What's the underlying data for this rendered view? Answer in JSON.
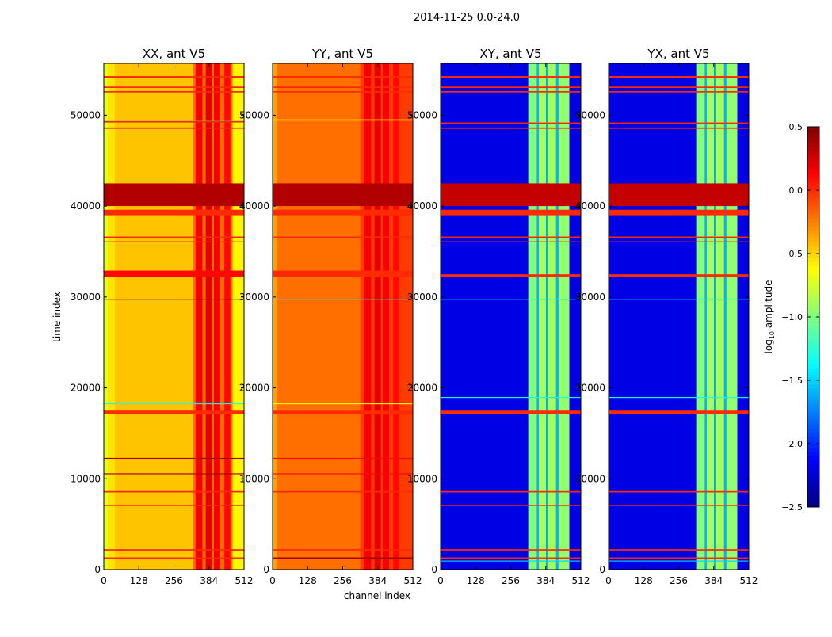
{
  "chart_data": {
    "type": "heatmap",
    "title": "2014-11-25 0.0-24.0",
    "xlabel": "channel index",
    "ylabel": "time index",
    "xlim": [
      0,
      512
    ],
    "ylim": [
      0,
      55700
    ],
    "xticks": [
      0,
      128,
      256,
      384,
      512
    ],
    "yticks": [
      0,
      10000,
      20000,
      30000,
      40000,
      50000
    ],
    "colorbar": {
      "label": "log10 amplitude",
      "label_main": "log",
      "label_sub": "10",
      "label_rest": " amplitude",
      "range": [
        -2.5,
        0.5
      ],
      "ticks": [
        0.5,
        0.0,
        -0.5,
        -1.0,
        -1.5,
        -2.0,
        -2.5
      ],
      "tick_labels": [
        "0.5",
        "0.0",
        "−0.5",
        "−1.0",
        "−1.5",
        "−2.0",
        "−2.5"
      ],
      "colormap": "jet"
    },
    "panels": [
      {
        "title": "XX, ant V5",
        "base": -0.45,
        "columns": [
          [
            0,
            15,
            -0.7
          ],
          [
            15,
            40,
            -0.55
          ],
          [
            325,
            470,
            -0.2
          ],
          [
            470,
            512,
            -0.6
          ],
          [
            335,
            360,
            0.15
          ],
          [
            372,
            395,
            0.2
          ],
          [
            402,
            425,
            0.15
          ],
          [
            440,
            462,
            0.1
          ]
        ],
        "rows": [
          [
            40000,
            42500,
            0.35
          ],
          [
            39000,
            39600,
            0.0
          ],
          [
            32200,
            32900,
            0.1
          ],
          [
            17100,
            17500,
            0.0
          ],
          [
            54100,
            54300,
            0.0
          ],
          [
            53000,
            53150,
            0.0
          ],
          [
            52500,
            52650,
            0.0
          ],
          [
            49200,
            49350,
            0.0
          ],
          [
            48500,
            48650,
            0.0
          ],
          [
            36500,
            36650,
            0.0
          ],
          [
            36000,
            36120,
            0.0
          ],
          [
            29700,
            29800,
            0.4
          ],
          [
            12200,
            12300,
            0.4
          ],
          [
            10500,
            10600,
            0.4
          ],
          [
            8500,
            8650,
            0.0
          ],
          [
            7000,
            7120,
            0.0
          ],
          [
            2100,
            2250,
            0.0
          ],
          [
            1200,
            1350,
            0.0
          ],
          [
            18200,
            18300,
            -1.3
          ],
          [
            49400,
            49500,
            -1.2
          ]
        ]
      },
      {
        "title": "YY, ant V5",
        "base": -0.2,
        "columns": [
          [
            0,
            15,
            -0.35
          ],
          [
            320,
            512,
            -0.05
          ],
          [
            335,
            360,
            0.15
          ],
          [
            372,
            395,
            0.2
          ],
          [
            402,
            425,
            0.15
          ],
          [
            440,
            462,
            0.1
          ]
        ],
        "rows": [
          [
            40000,
            42500,
            0.35
          ],
          [
            39000,
            39600,
            0.0
          ],
          [
            32200,
            32900,
            0.0
          ],
          [
            17100,
            17500,
            0.0
          ],
          [
            54100,
            54300,
            0.0
          ],
          [
            53000,
            53150,
            0.0
          ],
          [
            52500,
            52650,
            0.0
          ],
          [
            49400,
            49550,
            -0.5
          ],
          [
            36500,
            36650,
            0.0
          ],
          [
            29700,
            29800,
            -1.3
          ],
          [
            12200,
            12300,
            0.1
          ],
          [
            10500,
            10600,
            0.1
          ],
          [
            8500,
            8650,
            0.0
          ],
          [
            2100,
            2250,
            0.0
          ],
          [
            1200,
            1350,
            0.4
          ],
          [
            18200,
            18300,
            -0.6
          ]
        ]
      },
      {
        "title": "XY, ant V5",
        "base": -2.2,
        "columns": [
          [
            320,
            352,
            -1.0
          ],
          [
            352,
            358,
            -1.6
          ],
          [
            358,
            385,
            -0.9
          ],
          [
            385,
            392,
            -1.6
          ],
          [
            392,
            422,
            -0.9
          ],
          [
            422,
            430,
            -1.6
          ],
          [
            430,
            470,
            -0.95
          ]
        ],
        "rows": [
          [
            40000,
            42500,
            0.3
          ],
          [
            39000,
            39600,
            0.0
          ],
          [
            32200,
            32500,
            0.0
          ],
          [
            17100,
            17500,
            0.0
          ],
          [
            54100,
            54300,
            0.0
          ],
          [
            53000,
            53150,
            0.0
          ],
          [
            52500,
            52650,
            0.0
          ],
          [
            49000,
            49200,
            0.0
          ],
          [
            48500,
            48650,
            0.0
          ],
          [
            36500,
            36650,
            0.0
          ],
          [
            36000,
            36120,
            0.0
          ],
          [
            8500,
            8650,
            0.0
          ],
          [
            7000,
            7120,
            0.0
          ],
          [
            2100,
            2250,
            0.0
          ],
          [
            1200,
            1350,
            0.0
          ],
          [
            29700,
            29800,
            -1.4
          ],
          [
            18900,
            19000,
            -1.3
          ],
          [
            900,
            1000,
            -1.5
          ]
        ]
      },
      {
        "title": "YX, ant V5",
        "base": -2.2,
        "columns": [
          [
            320,
            352,
            -1.0
          ],
          [
            352,
            358,
            -1.6
          ],
          [
            358,
            385,
            -0.9
          ],
          [
            385,
            392,
            -1.6
          ],
          [
            392,
            422,
            -0.9
          ],
          [
            422,
            430,
            -1.6
          ],
          [
            430,
            470,
            -0.95
          ]
        ],
        "rows": [
          [
            40000,
            42500,
            0.3
          ],
          [
            39000,
            39600,
            0.0
          ],
          [
            32200,
            32500,
            0.0
          ],
          [
            17100,
            17500,
            0.0
          ],
          [
            54100,
            54300,
            0.0
          ],
          [
            53000,
            53150,
            0.0
          ],
          [
            52500,
            52650,
            0.0
          ],
          [
            49000,
            49200,
            0.0
          ],
          [
            48500,
            48650,
            0.0
          ],
          [
            36500,
            36650,
            0.0
          ],
          [
            36000,
            36120,
            0.0
          ],
          [
            8500,
            8650,
            0.0
          ],
          [
            7000,
            7120,
            0.0
          ],
          [
            2100,
            2250,
            0.0
          ],
          [
            1200,
            1350,
            0.0
          ],
          [
            29700,
            29800,
            -1.4
          ],
          [
            18900,
            19000,
            -1.3
          ],
          [
            900,
            1000,
            -1.5
          ]
        ]
      }
    ]
  }
}
